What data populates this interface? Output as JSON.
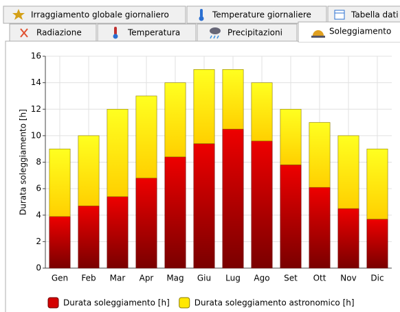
{
  "tabs": {
    "row1": [
      "Irraggiamento globale giornaliero",
      "Temperature giornaliere",
      "Tabella dati"
    ],
    "row2": [
      "Radiazione",
      "Temperatura",
      "Precipitazioni",
      "Soleggiamento"
    ]
  },
  "chart_data": {
    "type": "stacked_bar",
    "ylabel": "Durata soleggiamento [h]",
    "categories": [
      "Gen",
      "Feb",
      "Mar",
      "Apr",
      "Mag",
      "Giu",
      "Lug",
      "Ago",
      "Set",
      "Ott",
      "Nov",
      "Dic"
    ],
    "series": [
      {
        "name": "Durata soleggiamento [h]",
        "color": "#d40000",
        "values": [
          3.9,
          4.7,
          5.4,
          6.8,
          8.4,
          9.4,
          10.5,
          9.6,
          7.8,
          6.1,
          4.5,
          3.7
        ]
      },
      {
        "name": "Durata soleggiamento astronomico [h]",
        "color": "#ffe800",
        "values": [
          5.1,
          5.3,
          6.6,
          6.2,
          5.6,
          5.6,
          4.5,
          4.4,
          4.2,
          4.9,
          5.5,
          5.3
        ]
      }
    ],
    "ylim": [
      0,
      16
    ],
    "yticks": [
      0,
      2,
      4,
      6,
      8,
      10,
      12,
      14,
      16
    ],
    "grid": true,
    "legend": "bottom"
  }
}
